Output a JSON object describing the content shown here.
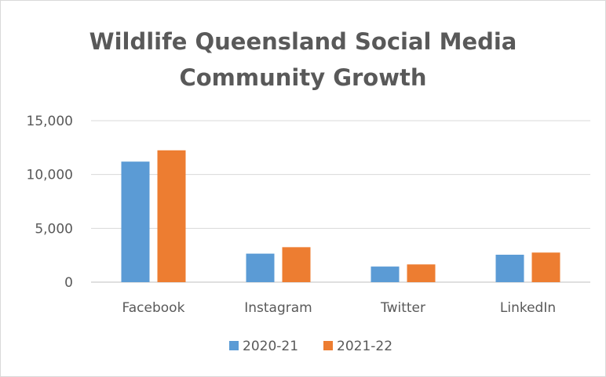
{
  "chart_data": {
    "type": "bar",
    "title_lines": [
      "Wildlife Queensland Social Media",
      "Community Growth"
    ],
    "categories": [
      "Facebook",
      "Instagram",
      "Twitter",
      "LinkedIn"
    ],
    "series": [
      {
        "name": "2020-21",
        "color": "#5B9BD5",
        "values": [
          11200,
          2650,
          1450,
          2550
        ]
      },
      {
        "name": "2021-22",
        "color": "#ED7D31",
        "values": [
          12250,
          3250,
          1650,
          2750
        ]
      }
    ],
    "ylim": [
      0,
      15000
    ],
    "yticks": [
      0,
      5000,
      10000,
      15000
    ],
    "ytick_labels": [
      "0",
      "5,000",
      "10,000",
      "15,000"
    ],
    "gridlines": true,
    "legend_position": "bottom",
    "colors": {
      "text": "#595959",
      "gridline": "#D9D9D9",
      "border": "#D9D9D9"
    }
  }
}
